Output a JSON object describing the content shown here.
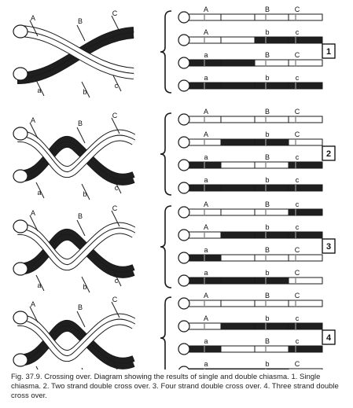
{
  "figure": {
    "panels": [
      {
        "number": "1",
        "type": "single chiasma",
        "strand_labels_top": [
          "A",
          "B",
          "C"
        ],
        "strand_labels_bottom": [
          "a",
          "b",
          "c"
        ],
        "strands": [
          {
            "markers": [
              "A",
              "B",
              "C"
            ],
            "pattern": "wwww"
          },
          {
            "markers": [
              "A",
              "b",
              "c"
            ],
            "pattern": "wwbb"
          },
          {
            "markers": [
              "a",
              "B",
              "C"
            ],
            "pattern": "bbww"
          },
          {
            "markers": [
              "a",
              "b",
              "c"
            ],
            "pattern": "bbbb"
          }
        ]
      },
      {
        "number": "2",
        "type": "two strand double cross over",
        "strand_labels_top": [
          "A",
          "B",
          "C"
        ],
        "strand_labels_bottom": [
          "a",
          "b",
          "c"
        ],
        "strands": [
          {
            "markers": [
              "A",
              "B",
              "C"
            ],
            "pattern": "wwww"
          },
          {
            "markers": [
              "A",
              "b",
              "C"
            ],
            "pattern": "wbbw"
          },
          {
            "markers": [
              "a",
              "B",
              "c"
            ],
            "pattern": "bwwb"
          },
          {
            "markers": [
              "a",
              "b",
              "c"
            ],
            "pattern": "bbbb"
          }
        ]
      },
      {
        "number": "3",
        "type": "four strand double cross over",
        "strand_labels_top": [
          "A",
          "B",
          "C"
        ],
        "strand_labels_bottom": [
          "a",
          "b",
          "c"
        ],
        "strands": [
          {
            "markers": [
              "A",
              "B",
              "c"
            ],
            "pattern": "wwwb"
          },
          {
            "markers": [
              "A",
              "b",
              "c"
            ],
            "pattern": "wbbb"
          },
          {
            "markers": [
              "a",
              "B",
              "C"
            ],
            "pattern": "bwww"
          },
          {
            "markers": [
              "a",
              "b",
              "C"
            ],
            "pattern": "bbbw"
          }
        ]
      },
      {
        "number": "4",
        "type": "three strand double cross over",
        "strand_labels_top": [
          "A",
          "B",
          "C"
        ],
        "strand_labels_bottom": [
          "a",
          "b",
          "c"
        ],
        "strands": [
          {
            "markers": [
              "A",
              "B",
              "C"
            ],
            "pattern": "wwww"
          },
          {
            "markers": [
              "A",
              "b",
              "c"
            ],
            "pattern": "wbbb"
          },
          {
            "markers": [
              "a",
              "B",
              "c"
            ],
            "pattern": "bwwb"
          },
          {
            "markers": [
              "a",
              "b",
              "C"
            ],
            "pattern": "bbbw"
          }
        ]
      }
    ]
  },
  "caption": {
    "figure_label": "Fig. 37.9.",
    "text": "Crossing over. Diagram showing the results of single and double chiasma. 1. Single chiasma. 2. Two strand double cross over. 3. Four strand double cross over. 4. Three strand double cross over."
  },
  "colors": {
    "dark": "#1f1f1f",
    "light": "#ffffff",
    "outline": "#1a1a1a"
  }
}
